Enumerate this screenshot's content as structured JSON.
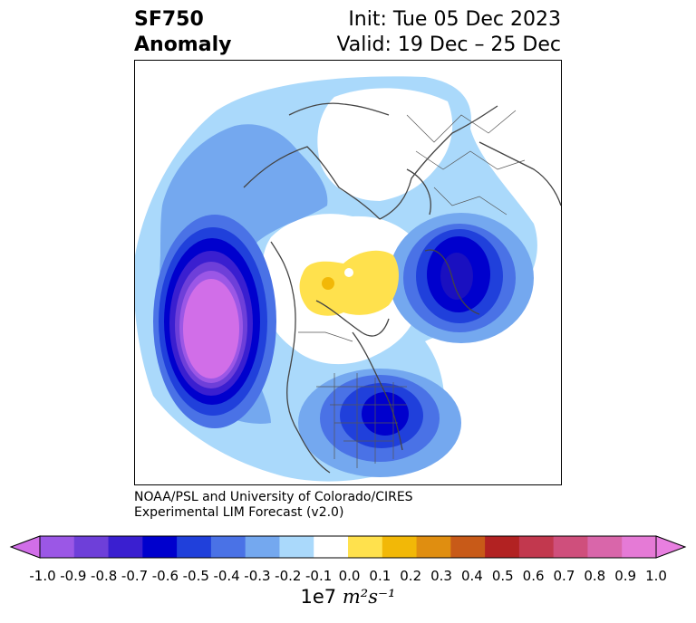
{
  "header": {
    "title_line1": "SF750",
    "title_line2": "Anomaly",
    "init_text": "Init: Tue 05 Dec 2023",
    "valid_text": "Valid: 19 Dec – 25 Dec"
  },
  "credit": {
    "line1": "NOAA/PSL and University of Colorado/CIRES",
    "line2": "Experimental LIM Forecast (v2.0)"
  },
  "colorbar": {
    "ticks": [
      "-1.0",
      "-0.9",
      "-0.8",
      "-0.7",
      "-0.6",
      "-0.5",
      "-0.4",
      "-0.3",
      "-0.2",
      "-0.1",
      "0.0",
      "0.1",
      "0.2",
      "0.3",
      "0.4",
      "0.5",
      "0.6",
      "0.7",
      "0.8",
      "0.9",
      "1.0"
    ],
    "colors": [
      "#9b57e6",
      "#6e3fd9",
      "#3a1fd0",
      "#0000cd",
      "#2040db",
      "#4a72e6",
      "#74a8ef",
      "#aad9fb",
      "#ffffff",
      "#ffe14d",
      "#f2b807",
      "#e08e10",
      "#c85a18",
      "#b22222",
      "#c2384e",
      "#cf4f7c",
      "#d966aa",
      "#e57ad6"
    ],
    "under_color": "#d16ee8",
    "over_color": "#e87fe0",
    "unit_prefix": "1e7",
    "unit_expr": "m²s⁻¹"
  },
  "map": {
    "projection": "north-polar-stereographic",
    "features": [
      "coastlines",
      "country-borders",
      "us-state-borders"
    ],
    "anomalies": [
      {
        "region": "North Pacific",
        "sign": "negative",
        "peak": -0.9
      },
      {
        "region": "Eastern United States",
        "sign": "negative",
        "peak": -0.6
      },
      {
        "region": "Scandinavia / Northern Europe",
        "sign": "negative",
        "peak": -0.6
      },
      {
        "region": "Arctic / Greenland",
        "sign": "positive",
        "peak": 0.2
      }
    ]
  }
}
